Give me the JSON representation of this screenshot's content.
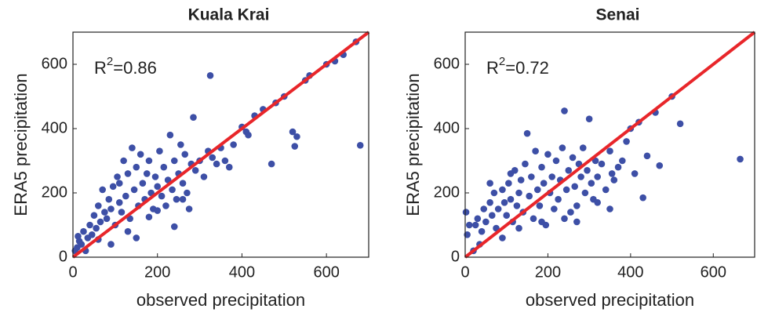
{
  "chart_data": [
    {
      "type": "scatter",
      "title": "Kuala Krai",
      "xlabel": "observed precipitation",
      "ylabel": "ERA5 precipitation",
      "annotation": {
        "base": "R",
        "superscript": "2",
        "rest": "=0.86"
      },
      "color": "#3d4fa6",
      "x": [
        5,
        10,
        15,
        20,
        25,
        30,
        35,
        40,
        45,
        50,
        55,
        60,
        65,
        70,
        75,
        80,
        85,
        90,
        95,
        100,
        105,
        110,
        115,
        120,
        125,
        130,
        135,
        140,
        145,
        150,
        155,
        160,
        165,
        170,
        175,
        180,
        185,
        190,
        195,
        200,
        205,
        210,
        215,
        220,
        225,
        230,
        235,
        240,
        245,
        250,
        255,
        260,
        265,
        270,
        275,
        280,
        285,
        290,
        300,
        310,
        320,
        325,
        330,
        340,
        350,
        360,
        370,
        380,
        400,
        410,
        415,
        430,
        450,
        470,
        480,
        500,
        520,
        525,
        530,
        550,
        560,
        600,
        620,
        640,
        670,
        680,
        12,
        60,
        90,
        130,
        150,
        240,
        180,
        110,
        200,
        260
      ],
      "y": [
        20,
        30,
        50,
        40,
        80,
        20,
        60,
        100,
        70,
        130,
        90,
        160,
        110,
        210,
        140,
        120,
        180,
        150,
        220,
        100,
        250,
        170,
        140,
        300,
        190,
        260,
        120,
        340,
        210,
        280,
        160,
        320,
        230,
        180,
        260,
        300,
        200,
        150,
        250,
        220,
        330,
        190,
        280,
        160,
        240,
        380,
        210,
        300,
        180,
        260,
        350,
        230,
        320,
        200,
        150,
        290,
        435,
        270,
        300,
        250,
        330,
        565,
        310,
        290,
        340,
        300,
        280,
        350,
        405,
        390,
        380,
        440,
        460,
        290,
        480,
        500,
        390,
        345,
        375,
        550,
        565,
        600,
        610,
        630,
        670,
        348,
        65,
        55,
        40,
        80,
        60,
        95,
        125,
        230,
        145,
        180
      ],
      "reference_line": {
        "x": [
          0,
          700
        ],
        "y": [
          0,
          700
        ],
        "color": "#e8262a"
      },
      "xlim": [
        0,
        700
      ],
      "ylim": [
        0,
        700
      ],
      "xticks": [
        0,
        200,
        400,
        600
      ],
      "yticks": [
        0,
        200,
        400,
        600
      ],
      "grid": false
    },
    {
      "type": "scatter",
      "title": "Senai",
      "xlabel": "observed precipitation",
      "ylabel": "ERA5 precipitation",
      "annotation": {
        "base": "R",
        "superscript": "2",
        "rest": "=0.72"
      },
      "color": "#3d4fa6",
      "x": [
        2,
        5,
        10,
        20,
        25,
        30,
        40,
        45,
        50,
        60,
        65,
        70,
        75,
        80,
        90,
        95,
        100,
        105,
        110,
        115,
        120,
        125,
        130,
        135,
        140,
        145,
        150,
        155,
        160,
        165,
        170,
        175,
        180,
        185,
        190,
        195,
        200,
        205,
        210,
        215,
        220,
        225,
        230,
        235,
        240,
        245,
        250,
        255,
        260,
        265,
        270,
        275,
        280,
        285,
        290,
        295,
        300,
        305,
        310,
        315,
        320,
        330,
        340,
        350,
        355,
        360,
        370,
        380,
        390,
        400,
        410,
        420,
        430,
        440,
        460,
        470,
        500,
        520,
        665,
        130,
        90,
        185,
        270,
        350,
        320,
        60,
        110,
        240,
        35
      ],
      "y": [
        140,
        70,
        100,
        20,
        100,
        120,
        80,
        150,
        110,
        170,
        130,
        200,
        90,
        150,
        210,
        170,
        130,
        230,
        180,
        110,
        270,
        160,
        200,
        240,
        140,
        290,
        385,
        190,
        250,
        120,
        330,
        210,
        160,
        280,
        230,
        100,
        320,
        200,
        250,
        150,
        300,
        180,
        240,
        340,
        455,
        210,
        270,
        140,
        310,
        220,
        160,
        290,
        250,
        340,
        200,
        270,
        430,
        230,
        180,
        300,
        250,
        290,
        210,
        330,
        260,
        240,
        280,
        300,
        360,
        400,
        260,
        420,
        185,
        315,
        450,
        285,
        500,
        415,
        305,
        90,
        60,
        110,
        110,
        150,
        170,
        230,
        260,
        120,
        40
      ],
      "reference_line": {
        "x": [
          0,
          700
        ],
        "y": [
          0,
          700
        ],
        "color": "#e8262a"
      },
      "xlim": [
        0,
        700
      ],
      "ylim": [
        0,
        700
      ],
      "xticks": [
        0,
        200,
        400,
        600
      ],
      "yticks": [
        0,
        200,
        400,
        600
      ],
      "grid": false
    }
  ]
}
